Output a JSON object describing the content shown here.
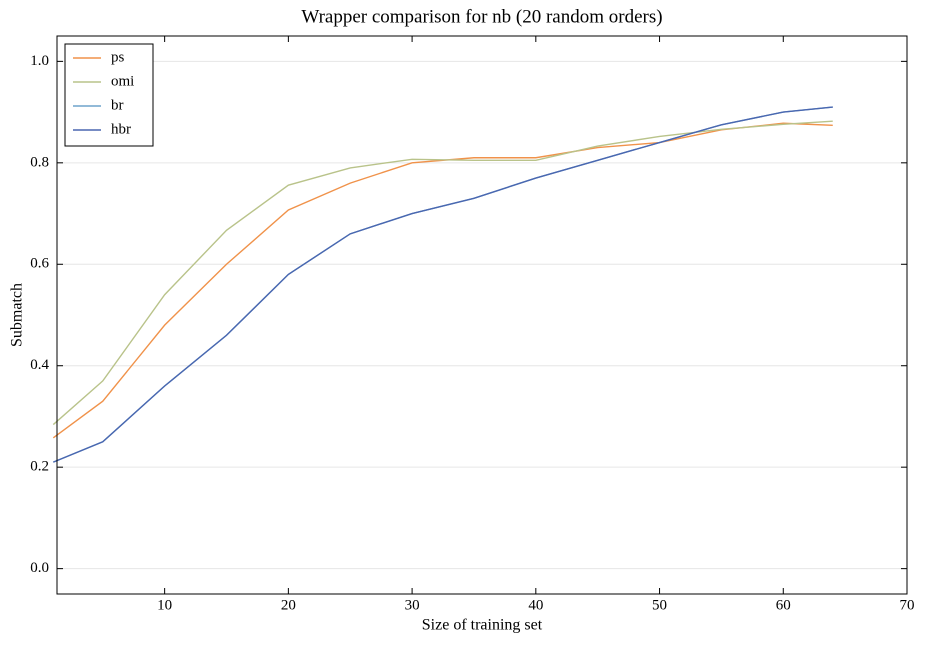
{
  "chart_data": {
    "type": "line",
    "title": "Wrapper comparison for nb (20 random orders)",
    "x_label": "Size of training set",
    "y_label": "Submatch",
    "x": [
      1,
      5,
      10,
      15,
      20,
      25,
      30,
      35,
      40,
      45,
      50,
      55,
      60,
      64
    ],
    "series": [
      {
        "name": "ps",
        "color": "#f0924a",
        "values": [
          0.258,
          0.33,
          0.48,
          0.6,
          0.707,
          0.76,
          0.8,
          0.81,
          0.81,
          0.83,
          0.84,
          0.865,
          0.878,
          0.874
        ]
      },
      {
        "name": "omi",
        "color": "#b9c38a",
        "values": [
          0.284,
          0.37,
          0.54,
          0.667,
          0.756,
          0.79,
          0.807,
          0.805,
          0.805,
          0.833,
          0.852,
          0.866,
          0.876,
          0.882
        ]
      },
      {
        "name": "br",
        "color": "#6fa3cc",
        "values": [
          0.21,
          0.25,
          0.36,
          0.46,
          0.58,
          0.66,
          0.7,
          0.73,
          0.77,
          0.805,
          0.84,
          0.875,
          0.9,
          0.91
        ]
      },
      {
        "name": "hbr",
        "color": "#4a67b0",
        "values": [
          0.21,
          0.25,
          0.36,
          0.46,
          0.58,
          0.66,
          0.7,
          0.73,
          0.77,
          0.805,
          0.84,
          0.875,
          0.9,
          0.91
        ]
      }
    ],
    "xlim": [
      1.3,
      70
    ],
    "xticks": [
      10,
      20,
      30,
      40,
      50,
      60,
      70
    ],
    "ylim": [
      -0.05,
      1.05
    ],
    "yticks": [
      {
        "value": 0,
        "label": "0.0"
      },
      0.2,
      0.4,
      0.6,
      0.8,
      {
        "value": 1,
        "label": "1.0"
      }
    ],
    "grid": true,
    "legend": "upper left"
  }
}
